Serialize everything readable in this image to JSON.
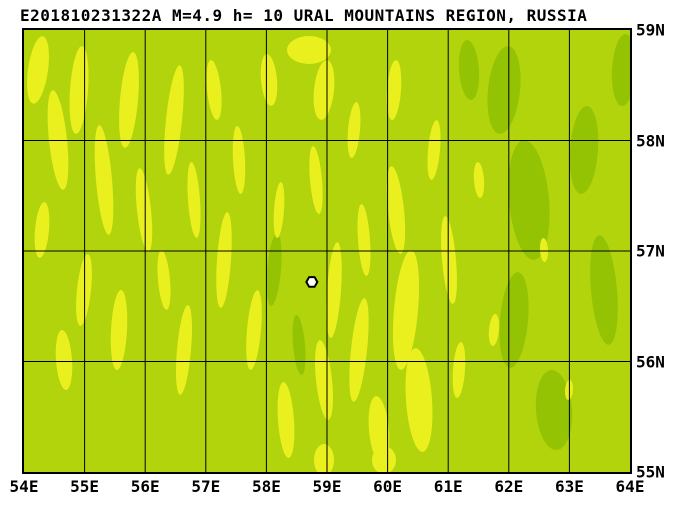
{
  "title": "E201810231322A M=4.9 h= 10 URAL MOUNTAINS REGION, RUSSIA",
  "event": {
    "event_id": "E201810231322A",
    "magnitude": "M=4.9",
    "depth": "h= 10",
    "region": "URAL MOUNTAINS REGION, RUSSIA"
  },
  "map": {
    "lon_labels": [
      "54E",
      "55E",
      "56E",
      "57E",
      "58E",
      "59E",
      "60E",
      "61E",
      "62E",
      "63E",
      "64E"
    ],
    "lat_labels": [
      "59N",
      "58N",
      "57N",
      "56N",
      "55N"
    ],
    "lon_range": [
      54,
      64
    ],
    "lat_range": [
      55,
      59
    ],
    "epicenter": {
      "lon": 58.75,
      "lat": 56.72,
      "marker": "hexagon"
    },
    "colors": {
      "base": "#b2d40c",
      "highland": "#eaf01e",
      "lowland": "#93c303",
      "grid": "#000000"
    }
  }
}
